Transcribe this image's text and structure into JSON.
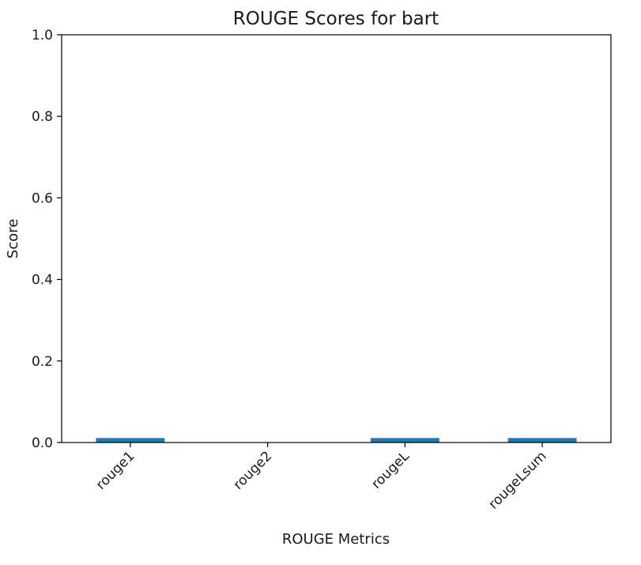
{
  "chart_data": {
    "type": "bar",
    "title": "ROUGE Scores for bart",
    "xlabel": "ROUGE Metrics",
    "ylabel": "Score",
    "categories": [
      "rouge1",
      "rouge2",
      "rougeL",
      "rougeLsum"
    ],
    "values": [
      0.011,
      0.0,
      0.011,
      0.011
    ],
    "ylim": [
      0,
      1.0
    ],
    "yticks": [
      "0.0",
      "0.2",
      "0.4",
      "0.6",
      "0.8",
      "1.0"
    ],
    "grid": false,
    "bar_color": "#1f77b4",
    "xtick_rotation": "45deg"
  }
}
